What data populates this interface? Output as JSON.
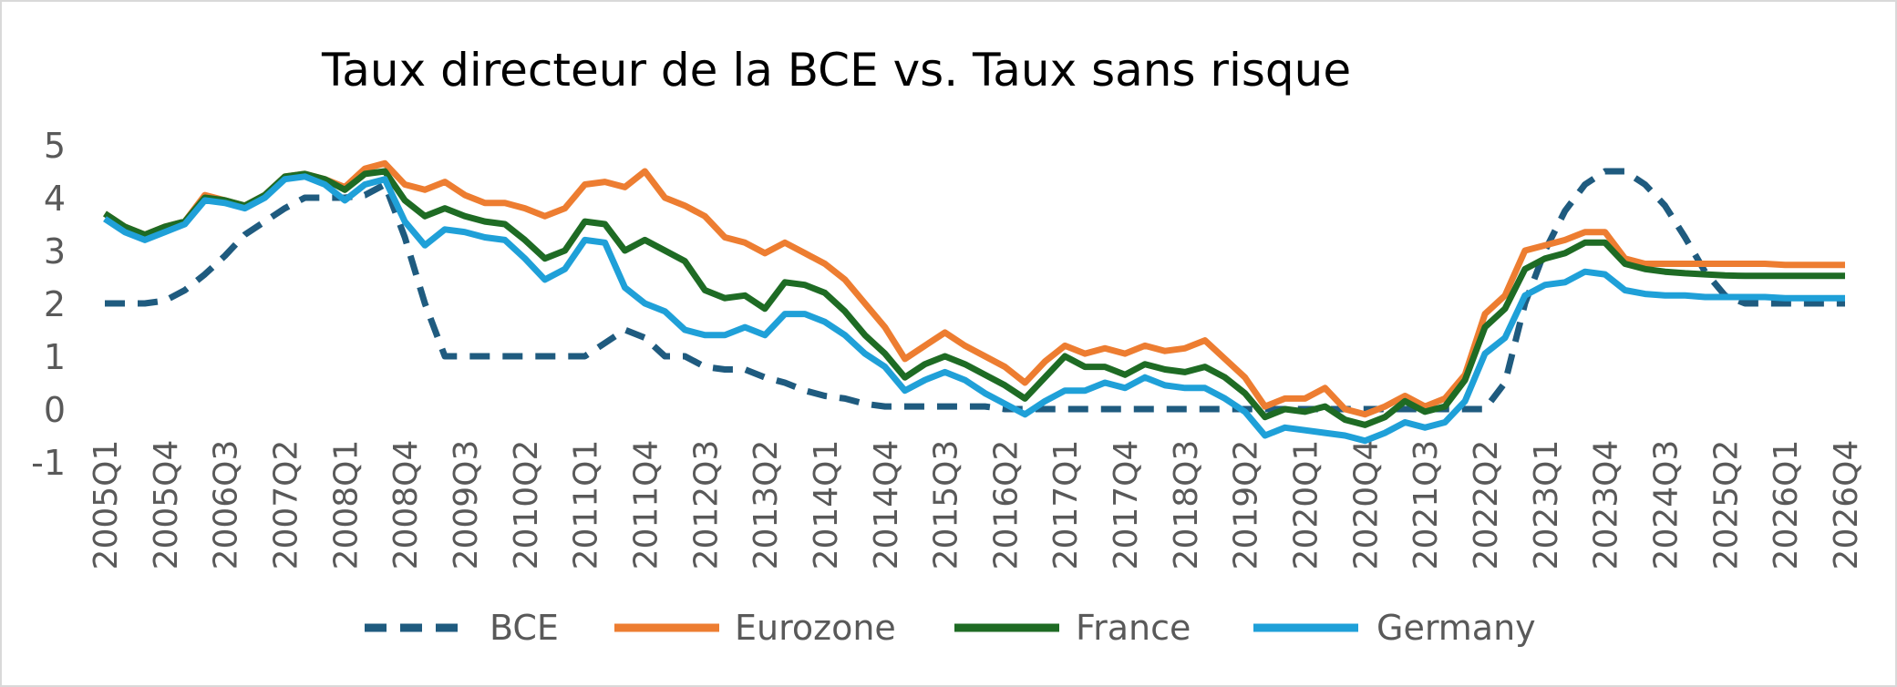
{
  "chart_data": {
    "type": "line",
    "title": "Taux directeur de la BCE vs. Taux sans risque",
    "xlabel": "",
    "ylabel": "",
    "ylim": [
      -1,
      5
    ],
    "yticks": [
      "5",
      "4",
      "3",
      "2",
      "1",
      "0",
      "-1"
    ],
    "grid": false,
    "legend_position": "bottom",
    "x_tick_labels": [
      "2005Q1",
      "2005Q4",
      "2006Q3",
      "2007Q2",
      "2008Q1",
      "2008Q4",
      "2009Q3",
      "2010Q2",
      "2011Q1",
      "2011Q4",
      "2012Q3",
      "2013Q2",
      "2014Q1",
      "2014Q4",
      "2015Q3",
      "2016Q2",
      "2017Q1",
      "2017Q4",
      "2018Q3",
      "2019Q2",
      "2020Q1",
      "2020Q4",
      "2021Q3",
      "2022Q2",
      "2023Q1",
      "2023Q4",
      "2024Q3",
      "2025Q2",
      "2026Q1",
      "2026Q4"
    ],
    "x": [
      "2005Q1",
      "2005Q2",
      "2005Q3",
      "2005Q4",
      "2006Q1",
      "2006Q2",
      "2006Q3",
      "2006Q4",
      "2007Q1",
      "2007Q2",
      "2007Q3",
      "2007Q4",
      "2008Q1",
      "2008Q2",
      "2008Q3",
      "2008Q4",
      "2009Q1",
      "2009Q2",
      "2009Q3",
      "2009Q4",
      "2010Q1",
      "2010Q2",
      "2010Q3",
      "2010Q4",
      "2011Q1",
      "2011Q2",
      "2011Q3",
      "2011Q4",
      "2012Q1",
      "2012Q2",
      "2012Q3",
      "2012Q4",
      "2013Q1",
      "2013Q2",
      "2013Q3",
      "2013Q4",
      "2014Q1",
      "2014Q2",
      "2014Q3",
      "2014Q4",
      "2015Q1",
      "2015Q2",
      "2015Q3",
      "2015Q4",
      "2016Q1",
      "2016Q2",
      "2016Q3",
      "2016Q4",
      "2017Q1",
      "2017Q2",
      "2017Q3",
      "2017Q4",
      "2018Q1",
      "2018Q2",
      "2018Q3",
      "2018Q4",
      "2019Q1",
      "2019Q2",
      "2019Q3",
      "2019Q4",
      "2020Q1",
      "2020Q2",
      "2020Q3",
      "2020Q4",
      "2021Q1",
      "2021Q2",
      "2021Q3",
      "2021Q4",
      "2022Q1",
      "2022Q2",
      "2022Q3",
      "2022Q4",
      "2023Q1",
      "2023Q2",
      "2023Q3",
      "2023Q4",
      "2024Q1",
      "2024Q2",
      "2024Q3",
      "2024Q4",
      "2025Q1",
      "2025Q2",
      "2025Q3",
      "2025Q4",
      "2026Q1",
      "2026Q2",
      "2026Q3",
      "2026Q4"
    ],
    "series": [
      {
        "name": "BCE",
        "color": "#1f5b7f",
        "dash": true,
        "values": [
          2.0,
          2.0,
          2.0,
          2.05,
          2.25,
          2.55,
          2.9,
          3.3,
          3.55,
          3.8,
          4.0,
          4.0,
          4.0,
          4.05,
          4.25,
          3.25,
          2.0,
          1.0,
          1.0,
          1.0,
          1.0,
          1.0,
          1.0,
          1.0,
          1.0,
          1.25,
          1.5,
          1.35,
          1.0,
          1.0,
          0.8,
          0.75,
          0.75,
          0.6,
          0.5,
          0.35,
          0.25,
          0.2,
          0.1,
          0.05,
          0.05,
          0.05,
          0.05,
          0.05,
          0.05,
          0.0,
          0.0,
          0.0,
          0.0,
          0.0,
          0.0,
          0.0,
          0.0,
          0.0,
          0.0,
          0.0,
          0.0,
          0.0,
          0.0,
          0.0,
          0.0,
          0.0,
          0.0,
          0.0,
          0.0,
          0.0,
          0.0,
          0.0,
          0.0,
          0.0,
          0.5,
          2.0,
          3.0,
          3.75,
          4.25,
          4.5,
          4.5,
          4.25,
          3.85,
          3.25,
          2.6,
          2.15,
          2.0,
          2.0,
          2.0,
          2.0,
          2.0,
          2.0
        ]
      },
      {
        "name": "Eurozone",
        "color": "#ed7d31",
        "dash": false,
        "values": [
          3.7,
          3.45,
          3.3,
          3.45,
          3.55,
          4.05,
          3.95,
          3.85,
          4.05,
          4.4,
          4.45,
          4.35,
          4.2,
          4.55,
          4.65,
          4.25,
          4.15,
          4.3,
          4.05,
          3.9,
          3.9,
          3.8,
          3.65,
          3.8,
          4.25,
          4.3,
          4.2,
          4.5,
          4.0,
          3.85,
          3.65,
          3.25,
          3.15,
          2.95,
          3.15,
          2.95,
          2.75,
          2.45,
          2.0,
          1.55,
          0.95,
          1.2,
          1.45,
          1.2,
          1.0,
          0.8,
          0.5,
          0.9,
          1.2,
          1.05,
          1.15,
          1.05,
          1.2,
          1.1,
          1.15,
          1.3,
          0.95,
          0.6,
          0.05,
          0.2,
          0.2,
          0.4,
          0.0,
          -0.1,
          0.05,
          0.25,
          0.05,
          0.2,
          0.65,
          1.8,
          2.15,
          3.0,
          3.1,
          3.2,
          3.35,
          3.35,
          2.85,
          2.75,
          2.75,
          2.75,
          2.75,
          2.75,
          2.75,
          2.75,
          2.73,
          2.73,
          2.73,
          2.73
        ]
      },
      {
        "name": "France",
        "color": "#1e6b24",
        "dash": false,
        "values": [
          3.7,
          3.45,
          3.3,
          3.45,
          3.55,
          4.0,
          3.95,
          3.85,
          4.05,
          4.4,
          4.45,
          4.35,
          4.15,
          4.45,
          4.5,
          3.95,
          3.65,
          3.8,
          3.65,
          3.55,
          3.5,
          3.2,
          2.85,
          3.0,
          3.55,
          3.5,
          3.0,
          3.2,
          3.0,
          2.8,
          2.25,
          2.1,
          2.15,
          1.9,
          2.4,
          2.35,
          2.2,
          1.85,
          1.4,
          1.05,
          0.6,
          0.85,
          1.0,
          0.85,
          0.65,
          0.45,
          0.2,
          0.6,
          1.0,
          0.8,
          0.8,
          0.65,
          0.85,
          0.75,
          0.7,
          0.8,
          0.6,
          0.3,
          -0.15,
          0.0,
          -0.05,
          0.05,
          -0.2,
          -0.3,
          -0.15,
          0.15,
          -0.05,
          0.05,
          0.55,
          1.55,
          1.9,
          2.65,
          2.85,
          2.95,
          3.15,
          3.15,
          2.75,
          2.65,
          2.6,
          2.57,
          2.55,
          2.53,
          2.52,
          2.52,
          2.52,
          2.52,
          2.52,
          2.52
        ]
      },
      {
        "name": "Germany",
        "color": "#1fa0d8",
        "dash": false,
        "values": [
          3.6,
          3.35,
          3.2,
          3.35,
          3.5,
          3.95,
          3.9,
          3.8,
          4.0,
          4.35,
          4.4,
          4.25,
          3.95,
          4.25,
          4.35,
          3.55,
          3.1,
          3.4,
          3.35,
          3.25,
          3.2,
          2.85,
          2.45,
          2.65,
          3.2,
          3.15,
          2.3,
          2.0,
          1.85,
          1.5,
          1.4,
          1.4,
          1.55,
          1.4,
          1.8,
          1.8,
          1.65,
          1.4,
          1.05,
          0.8,
          0.35,
          0.55,
          0.7,
          0.55,
          0.3,
          0.1,
          -0.1,
          0.15,
          0.35,
          0.35,
          0.5,
          0.4,
          0.6,
          0.45,
          0.4,
          0.4,
          0.2,
          -0.05,
          -0.5,
          -0.35,
          -0.4,
          -0.45,
          -0.5,
          -0.6,
          -0.45,
          -0.25,
          -0.35,
          -0.25,
          0.15,
          1.05,
          1.35,
          2.15,
          2.35,
          2.4,
          2.6,
          2.55,
          2.25,
          2.18,
          2.15,
          2.15,
          2.12,
          2.12,
          2.12,
          2.12,
          2.1,
          2.1,
          2.1,
          2.1
        ]
      }
    ]
  }
}
